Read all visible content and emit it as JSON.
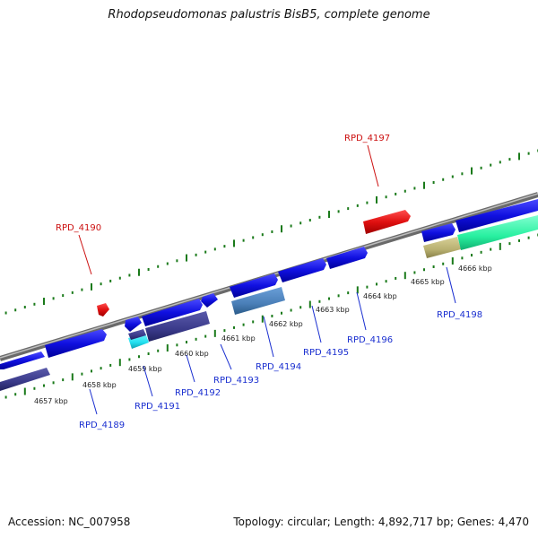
{
  "title": "Rhodopseudomonas palustris BisB5, complete genome",
  "footer": {
    "accession": "Accession: NC_007958",
    "summary": "Topology: circular; Length: 4,892,717 bp; Genes: 4,470"
  },
  "colors": {
    "forward_gene": "#1010e0",
    "forward_gene_red": "#e01010",
    "reverse_gene_dark": "#3a3a8a",
    "reverse_gene_steel": "#4a7fb8",
    "reverse_gene_cyan": "#22e0f0",
    "reverse_gene_green": "#28f0a0",
    "reverse_gene_khaki": "#b8b070",
    "backbone": "#8a8a8a",
    "tick_green": "#1a7a1a"
  },
  "scale_labels": [
    "4657 kbp",
    "4658 kbp",
    "4659 kbp",
    "4660 kbp",
    "4661 kbp",
    "4662 kbp",
    "4663 kbp",
    "4664 kbp",
    "4665 kbp",
    "4666 kbp"
  ],
  "gene_labels": [
    {
      "name": "RPD_4189",
      "color": "blue"
    },
    {
      "name": "RPD_4190",
      "color": "red"
    },
    {
      "name": "RPD_4191",
      "color": "blue"
    },
    {
      "name": "RPD_4192",
      "color": "blue"
    },
    {
      "name": "RPD_4193",
      "color": "blue"
    },
    {
      "name": "RPD_4194",
      "color": "blue"
    },
    {
      "name": "RPD_4195",
      "color": "blue"
    },
    {
      "name": "RPD_4196",
      "color": "blue"
    },
    {
      "name": "RPD_4197",
      "color": "red"
    },
    {
      "name": "RPD_4198",
      "color": "blue"
    }
  ]
}
